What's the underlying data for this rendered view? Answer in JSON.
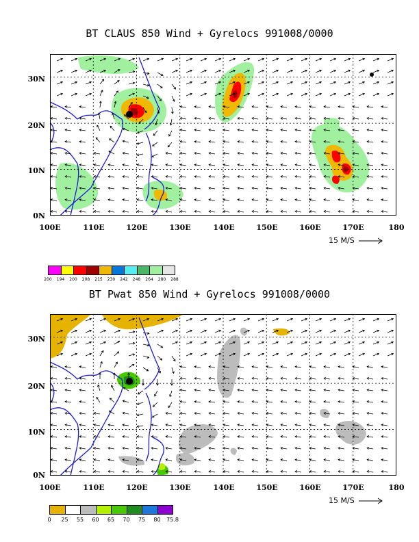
{
  "colors": {
    "coast": "#1a1adc",
    "claus": [
      "#ff00ff",
      "#ffff00",
      "#ff0000",
      "#a00000",
      "#f0b800",
      "#0078dc",
      "#55eef0",
      "#48b868",
      "#a0f0a0",
      "#e6e6e6"
    ],
    "pwat": [
      "#e6b400",
      "#ffffff",
      "#bcbcbc",
      "#b4f000",
      "#48c800",
      "#1e8c1e",
      "#1e78dc",
      "#8c00d2"
    ]
  },
  "panel1": {
    "title": "BT CLAUS 850 Wind + Gyrelocs 991008/0000",
    "lat_labels": [
      "30N",
      "20N",
      "10N",
      "0N"
    ],
    "lon_labels": [
      "100E",
      "110E",
      "120E",
      "130E",
      "140E",
      "150E",
      "160E",
      "170E",
      "180"
    ],
    "vector_ref": "15 M/S",
    "colorbar_labels": [
      "200",
      "194",
      "200",
      "208",
      "215",
      "230",
      "242",
      "248",
      "264",
      "280",
      "288"
    ]
  },
  "panel2": {
    "title": "BT Pwat 850 Wind + Gyrelocs 991008/0000",
    "lat_labels": [
      "30N",
      "20N",
      "10N",
      "0N"
    ],
    "lon_labels": [
      "100E",
      "110E",
      "120E",
      "130E",
      "140E",
      "150E",
      "160E",
      "170E",
      "180"
    ],
    "vector_ref": "15 M/S",
    "colorbar_labels": [
      "0",
      "25",
      "55",
      "60",
      "65",
      "70",
      "75",
      "80",
      "75.8"
    ]
  }
}
